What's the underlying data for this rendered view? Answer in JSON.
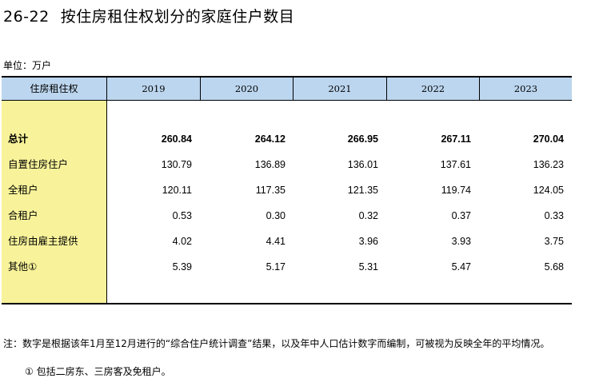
{
  "title": {
    "code": "26-22",
    "text": "按住房租住权划分的家庭住户数目"
  },
  "unit": "单位：万户",
  "table": {
    "stub_header": "住房租住权",
    "years": [
      "2019",
      "2020",
      "2021",
      "2022",
      "2023"
    ],
    "rows": [
      {
        "label": "总计",
        "values": [
          "260.84",
          "264.12",
          "266.95",
          "267.11",
          "270.04"
        ],
        "bold": true
      },
      {
        "label": "自置住房住户",
        "values": [
          "130.79",
          "136.89",
          "136.01",
          "137.61",
          "136.23"
        ]
      },
      {
        "label": "全租户",
        "values": [
          "120.11",
          "117.35",
          "121.35",
          "119.74",
          "124.05"
        ]
      },
      {
        "label": "合租户",
        "values": [
          "0.53",
          "0.30",
          "0.32",
          "0.37",
          "0.33"
        ]
      },
      {
        "label": "住房由雇主提供",
        "values": [
          "4.02",
          "4.41",
          "3.96",
          "3.93",
          "3.75"
        ]
      },
      {
        "label": "其他①",
        "values": [
          "5.39",
          "5.17",
          "5.31",
          "5.47",
          "5.68"
        ]
      }
    ]
  },
  "notes": {
    "main": "注：数字是根据该年1月至12月进行的“综合住户统计调查”结果，以及年中人口估计数字而编制，可被视为反映全年的平均情况。",
    "footnote": "①  包括二房东、三房客及免租户。"
  }
}
